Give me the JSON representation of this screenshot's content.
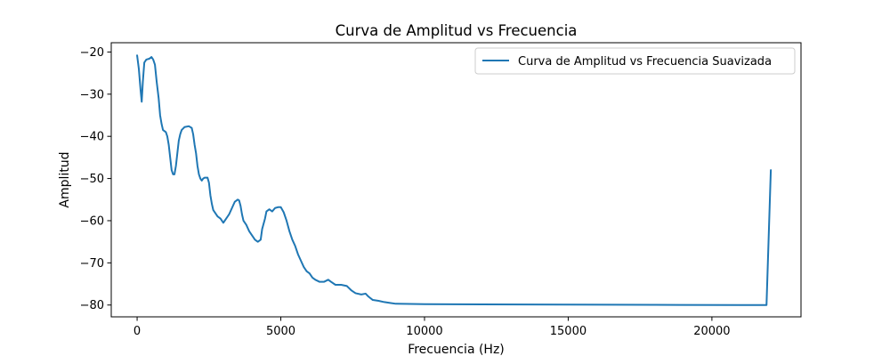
{
  "chart_data": {
    "type": "line",
    "title": "Curva de Amplitud vs Frecuencia",
    "xlabel": "Frecuencia (Hz)",
    "ylabel": "Amplitud",
    "xlim": [
      -900,
      23100
    ],
    "ylim": [
      -82.8,
      -17.8
    ],
    "xticks": [
      0,
      5000,
      10000,
      15000,
      20000
    ],
    "yticks": [
      -80,
      -70,
      -60,
      -50,
      -40,
      -30,
      -20
    ],
    "grid": false,
    "legend_position": "top-right",
    "series": [
      {
        "name": "Curva de Amplitud vs Frecuencia Suavizada",
        "color": "#1f77b4",
        "points": [
          [
            0,
            -20.8
          ],
          [
            60,
            -24
          ],
          [
            120,
            -29
          ],
          [
            160,
            -31.8
          ],
          [
            200,
            -27
          ],
          [
            250,
            -22.5
          ],
          [
            320,
            -21.8
          ],
          [
            420,
            -21.6
          ],
          [
            500,
            -21.2
          ],
          [
            560,
            -21.8
          ],
          [
            620,
            -23
          ],
          [
            680,
            -27
          ],
          [
            750,
            -31
          ],
          [
            800,
            -35
          ],
          [
            850,
            -37
          ],
          [
            900,
            -38.5
          ],
          [
            1000,
            -39
          ],
          [
            1050,
            -40
          ],
          [
            1100,
            -42
          ],
          [
            1150,
            -45
          ],
          [
            1200,
            -48
          ],
          [
            1250,
            -49
          ],
          [
            1300,
            -49
          ],
          [
            1350,
            -47
          ],
          [
            1400,
            -44
          ],
          [
            1450,
            -41
          ],
          [
            1500,
            -39.5
          ],
          [
            1550,
            -38.5
          ],
          [
            1650,
            -37.8
          ],
          [
            1800,
            -37.6
          ],
          [
            1900,
            -38
          ],
          [
            1950,
            -39.5
          ],
          [
            2000,
            -42
          ],
          [
            2050,
            -44
          ],
          [
            2100,
            -47
          ],
          [
            2150,
            -49
          ],
          [
            2200,
            -50
          ],
          [
            2250,
            -50.5
          ],
          [
            2300,
            -50
          ],
          [
            2350,
            -49.8
          ],
          [
            2450,
            -49.8
          ],
          [
            2500,
            -51
          ],
          [
            2550,
            -54
          ],
          [
            2600,
            -56
          ],
          [
            2650,
            -57.5
          ],
          [
            2700,
            -58
          ],
          [
            2800,
            -59
          ],
          [
            2900,
            -59.5
          ],
          [
            3000,
            -60.5
          ],
          [
            3100,
            -59.5
          ],
          [
            3200,
            -58.5
          ],
          [
            3300,
            -57
          ],
          [
            3400,
            -55.5
          ],
          [
            3500,
            -55
          ],
          [
            3550,
            -55.2
          ],
          [
            3600,
            -56.5
          ],
          [
            3650,
            -58.5
          ],
          [
            3700,
            -60
          ],
          [
            3800,
            -61
          ],
          [
            3900,
            -62.5
          ],
          [
            4000,
            -63.5
          ],
          [
            4100,
            -64.5
          ],
          [
            4200,
            -65
          ],
          [
            4300,
            -64.5
          ],
          [
            4350,
            -62
          ],
          [
            4450,
            -59.5
          ],
          [
            4500,
            -57.8
          ],
          [
            4600,
            -57.3
          ],
          [
            4700,
            -57.8
          ],
          [
            4800,
            -57
          ],
          [
            4900,
            -56.8
          ],
          [
            5000,
            -56.8
          ],
          [
            5100,
            -58
          ],
          [
            5200,
            -60
          ],
          [
            5300,
            -62.5
          ],
          [
            5400,
            -64.5
          ],
          [
            5500,
            -66
          ],
          [
            5600,
            -68
          ],
          [
            5700,
            -69.5
          ],
          [
            5800,
            -71
          ],
          [
            5900,
            -72
          ],
          [
            6000,
            -72.5
          ],
          [
            6100,
            -73.5
          ],
          [
            6200,
            -74
          ],
          [
            6350,
            -74.5
          ],
          [
            6500,
            -74.5
          ],
          [
            6650,
            -74
          ],
          [
            6750,
            -74.5
          ],
          [
            6900,
            -75.2
          ],
          [
            7100,
            -75.2
          ],
          [
            7300,
            -75.5
          ],
          [
            7450,
            -76.5
          ],
          [
            7600,
            -77.2
          ],
          [
            7800,
            -77.5
          ],
          [
            7950,
            -77.3
          ],
          [
            8050,
            -78
          ],
          [
            8200,
            -78.8
          ],
          [
            8400,
            -79
          ],
          [
            8600,
            -79.3
          ],
          [
            8800,
            -79.5
          ],
          [
            9000,
            -79.7
          ],
          [
            10000,
            -79.8
          ],
          [
            12000,
            -79.85
          ],
          [
            15000,
            -79.9
          ],
          [
            18000,
            -79.95
          ],
          [
            21000,
            -80
          ],
          [
            21900,
            -80
          ],
          [
            22050,
            -48
          ]
        ]
      }
    ]
  }
}
